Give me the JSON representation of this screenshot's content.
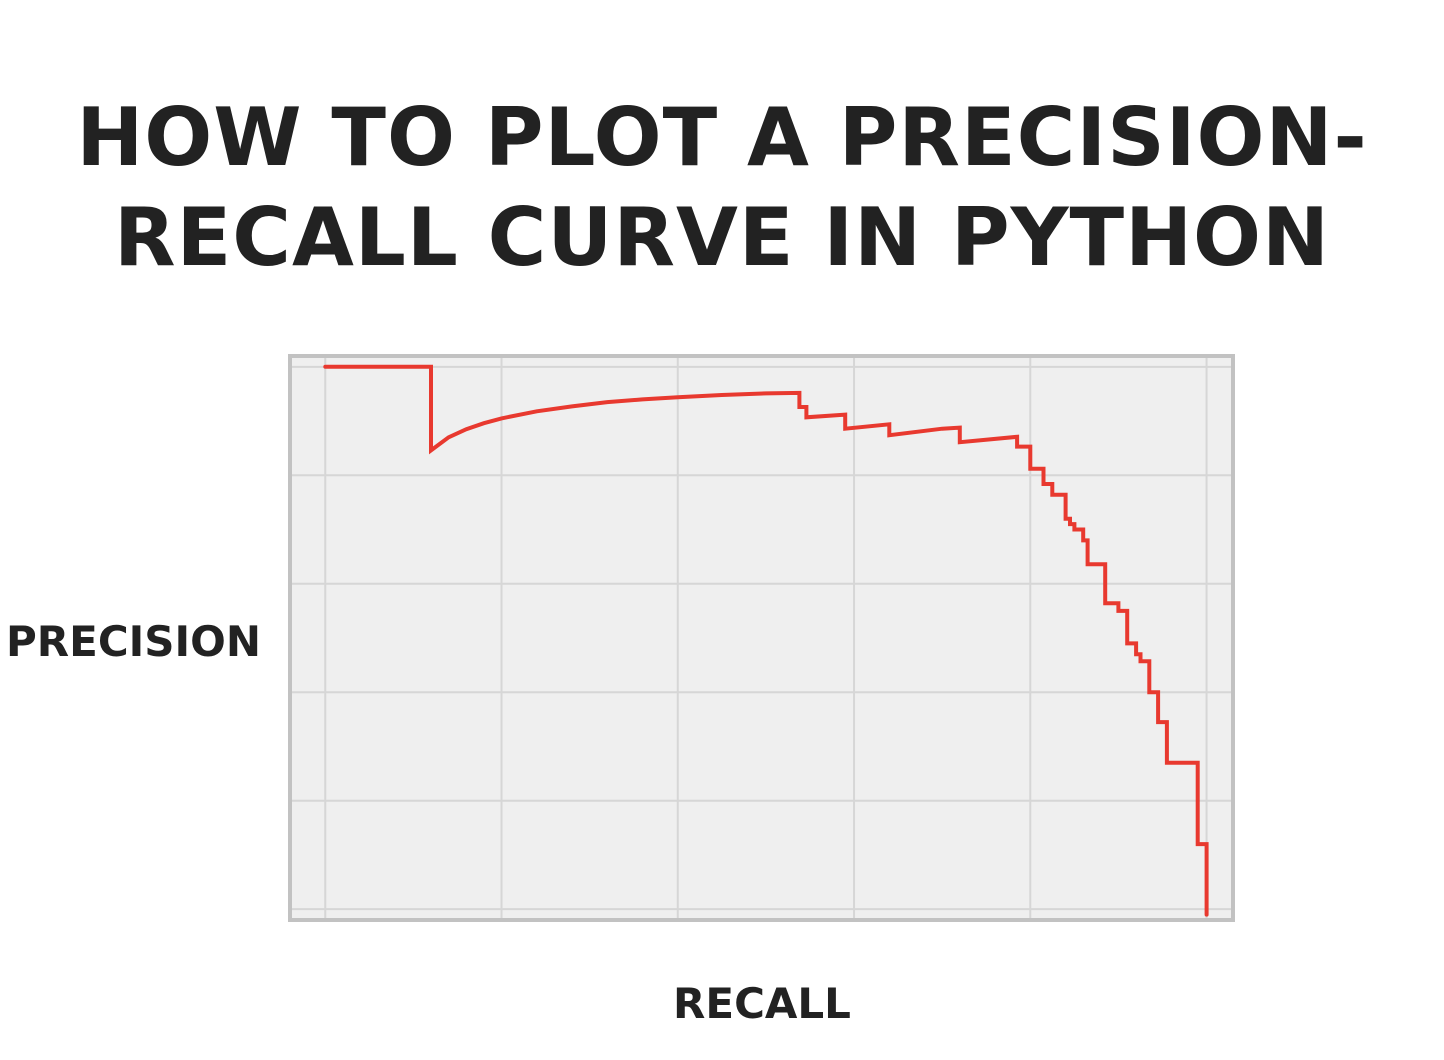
{
  "title_lines": [
    "HOW TO PLOT A PRECISION-",
    "RECALL CURVE IN PYTHON"
  ],
  "chart_data": {
    "type": "line",
    "title": "HOW TO PLOT A PRECISION-RECALL CURVE IN PYTHON",
    "xlabel": "RECALL",
    "ylabel": "PRECISION",
    "xlim": [
      -0.04,
      1.03
    ],
    "ylim": [
      -0.02,
      1.02
    ],
    "grid": true,
    "x_gridlines": [
      0.0,
      0.2,
      0.4,
      0.6,
      0.8,
      1.0
    ],
    "y_gridlines": [
      0.0,
      0.2,
      0.4,
      0.6,
      0.8,
      1.0
    ],
    "tick_labels_shown": false,
    "line_color": "#e8392f",
    "background_color": "#efefef",
    "frame_color": "#c2c2c2",
    "grid_color": "#d6d6d6",
    "series": [
      {
        "points": [
          [
            0.0,
            1.0
          ],
          [
            0.12,
            1.0
          ],
          [
            0.12,
            0.846
          ],
          [
            0.14,
            0.87
          ],
          [
            0.16,
            0.885
          ],
          [
            0.18,
            0.896
          ],
          [
            0.2,
            0.905
          ],
          [
            0.24,
            0.918
          ],
          [
            0.28,
            0.927
          ],
          [
            0.32,
            0.935
          ],
          [
            0.36,
            0.94
          ],
          [
            0.4,
            0.944
          ],
          [
            0.45,
            0.948
          ],
          [
            0.5,
            0.951
          ],
          [
            0.538,
            0.952
          ],
          [
            0.538,
            0.926
          ],
          [
            0.546,
            0.926
          ],
          [
            0.546,
            0.907
          ],
          [
            0.59,
            0.912
          ],
          [
            0.59,
            0.886
          ],
          [
            0.64,
            0.894
          ],
          [
            0.64,
            0.874
          ],
          [
            0.7,
            0.886
          ],
          [
            0.72,
            0.888
          ],
          [
            0.72,
            0.861
          ],
          [
            0.785,
            0.871
          ],
          [
            0.785,
            0.853
          ],
          [
            0.8,
            0.853
          ],
          [
            0.8,
            0.812
          ],
          [
            0.815,
            0.812
          ],
          [
            0.815,
            0.784
          ],
          [
            0.825,
            0.784
          ],
          [
            0.825,
            0.764
          ],
          [
            0.84,
            0.764
          ],
          [
            0.84,
            0.72
          ],
          [
            0.845,
            0.72
          ],
          [
            0.845,
            0.71
          ],
          [
            0.85,
            0.71
          ],
          [
            0.85,
            0.7
          ],
          [
            0.86,
            0.7
          ],
          [
            0.86,
            0.68
          ],
          [
            0.865,
            0.68
          ],
          [
            0.865,
            0.636
          ],
          [
            0.885,
            0.636
          ],
          [
            0.885,
            0.564
          ],
          [
            0.9,
            0.564
          ],
          [
            0.9,
            0.55
          ],
          [
            0.91,
            0.55
          ],
          [
            0.91,
            0.49
          ],
          [
            0.92,
            0.49
          ],
          [
            0.92,
            0.47
          ],
          [
            0.925,
            0.47
          ],
          [
            0.925,
            0.457
          ],
          [
            0.935,
            0.457
          ],
          [
            0.935,
            0.4
          ],
          [
            0.945,
            0.4
          ],
          [
            0.945,
            0.345
          ],
          [
            0.955,
            0.345
          ],
          [
            0.955,
            0.27
          ],
          [
            0.99,
            0.27
          ],
          [
            0.99,
            0.12
          ],
          [
            1.0,
            0.12
          ],
          [
            1.0,
            -0.01
          ]
        ]
      }
    ]
  }
}
